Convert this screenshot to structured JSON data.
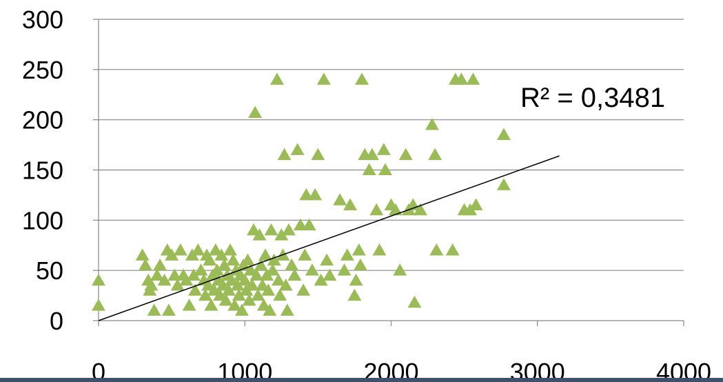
{
  "chart_data": {
    "type": "scatter",
    "title": "",
    "xlabel": "",
    "ylabel": "",
    "xlim": [
      0,
      4000
    ],
    "ylim": [
      0,
      300
    ],
    "x_ticks": [
      0,
      1000,
      2000,
      3000,
      4000
    ],
    "y_ticks": [
      0,
      50,
      100,
      150,
      200,
      250,
      300
    ],
    "grid": "horizontal",
    "legend": "none",
    "marker": "triangle",
    "marker_color": "#9bbb59",
    "trendline": {
      "type": "linear",
      "x": [
        0,
        3150
      ],
      "y": [
        0,
        164
      ],
      "color": "#000000",
      "r2_label": "R² = 0,3481"
    },
    "series": [
      {
        "points": [
          [
            0,
            40
          ],
          [
            0,
            15
          ],
          [
            300,
            65
          ],
          [
            320,
            55
          ],
          [
            340,
            40
          ],
          [
            350,
            30
          ],
          [
            360,
            35
          ],
          [
            380,
            10
          ],
          [
            400,
            45
          ],
          [
            420,
            55
          ],
          [
            450,
            40
          ],
          [
            470,
            70
          ],
          [
            480,
            10
          ],
          [
            500,
            65
          ],
          [
            520,
            45
          ],
          [
            540,
            35
          ],
          [
            560,
            70
          ],
          [
            580,
            45
          ],
          [
            600,
            40
          ],
          [
            620,
            15
          ],
          [
            640,
            65
          ],
          [
            650,
            45
          ],
          [
            660,
            30
          ],
          [
            680,
            70
          ],
          [
            700,
            50
          ],
          [
            720,
            40
          ],
          [
            730,
            25
          ],
          [
            740,
            65
          ],
          [
            750,
            35
          ],
          [
            760,
            60
          ],
          [
            770,
            15
          ],
          [
            780,
            45
          ],
          [
            790,
            30
          ],
          [
            800,
            70
          ],
          [
            810,
            50
          ],
          [
            820,
            40
          ],
          [
            830,
            25
          ],
          [
            840,
            65
          ],
          [
            850,
            35
          ],
          [
            860,
            55
          ],
          [
            870,
            20
          ],
          [
            880,
            45
          ],
          [
            890,
            30
          ],
          [
            900,
            70
          ],
          [
            910,
            40
          ],
          [
            920,
            60
          ],
          [
            930,
            15
          ],
          [
            940,
            50
          ],
          [
            950,
            35
          ],
          [
            960,
            25
          ],
          [
            970,
            45
          ],
          [
            980,
            10
          ],
          [
            990,
            55
          ],
          [
            1000,
            40
          ],
          [
            1010,
            30
          ],
          [
            1020,
            60
          ],
          [
            1030,
            20
          ],
          [
            1040,
            50
          ],
          [
            1050,
            35
          ],
          [
            1060,
            90
          ],
          [
            1070,
            207
          ],
          [
            1080,
            45
          ],
          [
            1090,
            25
          ],
          [
            1100,
            85
          ],
          [
            1110,
            55
          ],
          [
            1120,
            35
          ],
          [
            1130,
            15
          ],
          [
            1140,
            65
          ],
          [
            1150,
            45
          ],
          [
            1160,
            30
          ],
          [
            1170,
            10
          ],
          [
            1180,
            90
          ],
          [
            1190,
            50
          ],
          [
            1200,
            60
          ],
          [
            1220,
            240
          ],
          [
            1230,
            40
          ],
          [
            1240,
            25
          ],
          [
            1250,
            85
          ],
          [
            1260,
            65
          ],
          [
            1270,
            165
          ],
          [
            1280,
            35
          ],
          [
            1290,
            10
          ],
          [
            1300,
            90
          ],
          [
            1320,
            55
          ],
          [
            1340,
            45
          ],
          [
            1360,
            170
          ],
          [
            1380,
            95
          ],
          [
            1400,
            30
          ],
          [
            1410,
            65
          ],
          [
            1420,
            125
          ],
          [
            1440,
            95
          ],
          [
            1460,
            50
          ],
          [
            1480,
            125
          ],
          [
            1500,
            165
          ],
          [
            1520,
            40
          ],
          [
            1540,
            240
          ],
          [
            1560,
            60
          ],
          [
            1580,
            45
          ],
          [
            1650,
            120
          ],
          [
            1680,
            50
          ],
          [
            1700,
            65
          ],
          [
            1720,
            115
          ],
          [
            1750,
            25
          ],
          [
            1760,
            40
          ],
          [
            1780,
            70
          ],
          [
            1790,
            55
          ],
          [
            1800,
            240
          ],
          [
            1820,
            165
          ],
          [
            1850,
            150
          ],
          [
            1870,
            165
          ],
          [
            1900,
            110
          ],
          [
            1920,
            70
          ],
          [
            1950,
            170
          ],
          [
            1960,
            150
          ],
          [
            2000,
            115
          ],
          [
            2030,
            110
          ],
          [
            2060,
            50
          ],
          [
            2100,
            165
          ],
          [
            2120,
            110
          ],
          [
            2150,
            115
          ],
          [
            2160,
            18
          ],
          [
            2200,
            110
          ],
          [
            2280,
            195
          ],
          [
            2300,
            165
          ],
          [
            2310,
            70
          ],
          [
            2420,
            70
          ],
          [
            2440,
            240
          ],
          [
            2480,
            240
          ],
          [
            2500,
            110
          ],
          [
            2540,
            110
          ],
          [
            2560,
            240
          ],
          [
            2580,
            115
          ],
          [
            2770,
            185
          ],
          [
            2770,
            135
          ]
        ]
      }
    ]
  }
}
